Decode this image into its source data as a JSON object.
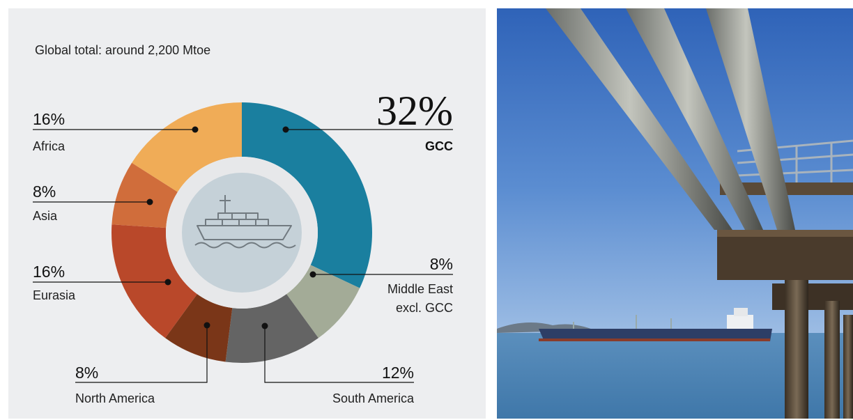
{
  "subtitle": "Global total: around 2,200 Mtoe",
  "chart_data": {
    "type": "pie",
    "title": "Global total: around 2,200 Mtoe",
    "start_angle_deg": 0,
    "direction": "clockwise",
    "slices": [
      {
        "label": "GCC",
        "value": 32,
        "pct_label": "32%",
        "color": "#1a7f9f"
      },
      {
        "label": "Middle East excl. GCC",
        "label_lines": [
          "Middle East",
          "excl. GCC"
        ],
        "value": 8,
        "pct_label": "8%",
        "color": "#a3ab97"
      },
      {
        "label": "South America",
        "value": 12,
        "pct_label": "12%",
        "color": "#646464"
      },
      {
        "label": "North America",
        "value": 8,
        "pct_label": "8%",
        "color": "#7a3618"
      },
      {
        "label": "Eurasia",
        "value": 16,
        "pct_label": "16%",
        "color": "#b9482a"
      },
      {
        "label": "Asia",
        "value": 8,
        "pct_label": "8%",
        "color": "#d06d3b"
      },
      {
        "label": "Africa",
        "value": 16,
        "pct_label": "16%",
        "color": "#f0ac57"
      }
    ],
    "center_icon": "cargo-ship-icon",
    "inner_circle_color": "#c5d1d8"
  },
  "photo": {
    "icon": "oil-pipeline-pier-with-tanker-photo",
    "sky_color": "#4a7fc8",
    "water_color": "#4d86b6"
  }
}
